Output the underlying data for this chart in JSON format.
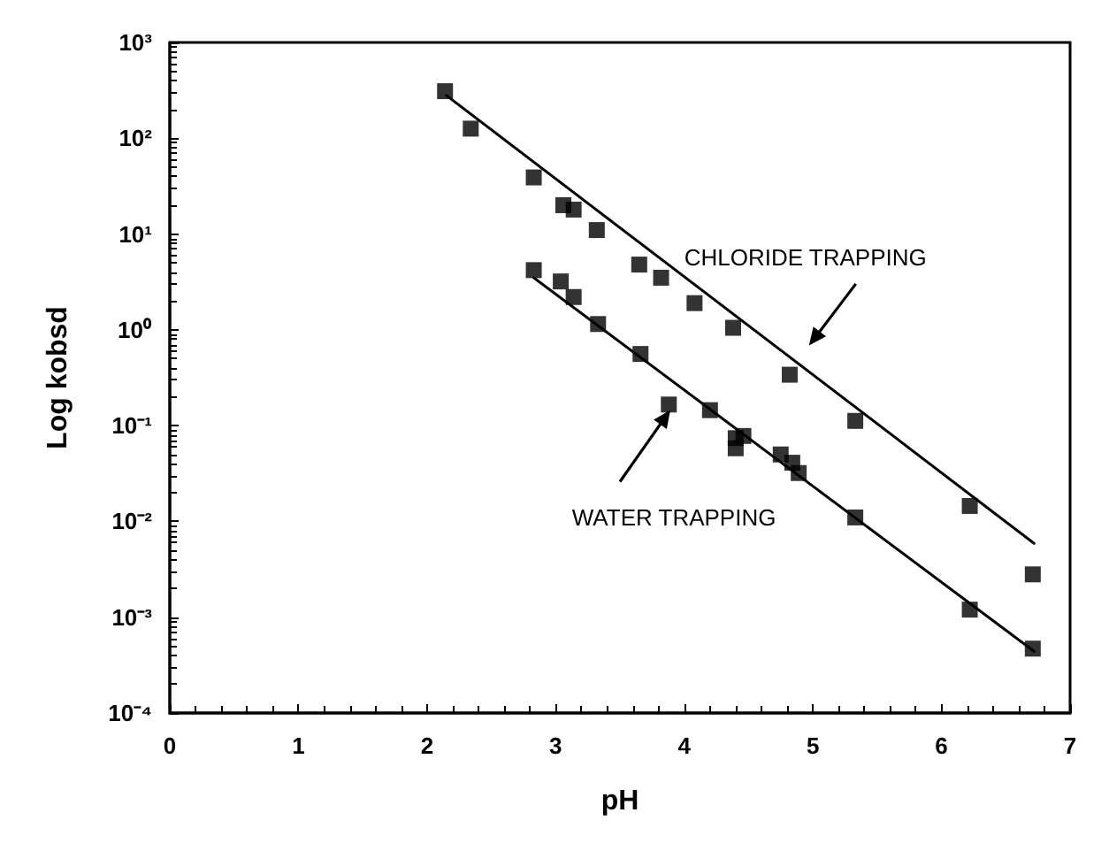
{
  "chart_data": {
    "type": "scatter",
    "xlabel": "pH",
    "ylabel": "Log kobsd",
    "log": "y",
    "marker": "square",
    "xlim": [
      0,
      7
    ],
    "xticks": [
      0,
      1,
      2,
      3,
      4,
      5,
      6,
      7
    ],
    "ylim": [
      0.0001,
      1000
    ],
    "yticks": [
      {
        "value": 0.0001,
        "label": "10⁻⁴"
      },
      {
        "value": 0.001,
        "label": "10⁻³"
      },
      {
        "value": 0.01,
        "label": "10⁻²"
      },
      {
        "value": 0.1,
        "label": "10⁻¹"
      },
      {
        "value": 1,
        "label": "10⁰"
      },
      {
        "value": 10,
        "label": "10¹"
      },
      {
        "value": 100,
        "label": "10²"
      },
      {
        "value": 1000,
        "label": "10³"
      }
    ],
    "series": [
      {
        "color": "#000000",
        "x": [
          2.14,
          2.34,
          2.83,
          3.06,
          3.14,
          3.32,
          3.65,
          3.82,
          4.08,
          4.38,
          4.82,
          5.33,
          6.22,
          6.71
        ],
        "values": [
          310,
          126,
          39,
          20,
          18,
          11,
          4.8,
          3.5,
          1.9,
          1.05,
          0.34,
          0.112,
          0.0145,
          0.0028
        ]
      },
      {
        "color": "#000000",
        "x": [
          2.83,
          3.04,
          3.14,
          3.33,
          3.66,
          3.88,
          4.2,
          4.4,
          4.4,
          4.46,
          4.75,
          4.84,
          4.89,
          5.33,
          6.22,
          6.71
        ],
        "values": [
          4.2,
          3.2,
          2.2,
          1.15,
          0.56,
          0.166,
          0.145,
          0.074,
          0.058,
          0.078,
          0.05,
          0.041,
          0.032,
          0.011,
          0.0012,
          0.00047
        ]
      },
      {
        "type": "line",
        "color": "#000000",
        "marker": "none",
        "line_style": "solid",
        "x": [
          2.15,
          6.72
        ],
        "values": [
          280,
          0.0059
        ]
      },
      {
        "type": "line",
        "color": "#000000",
        "marker": "none",
        "line_style": "solid",
        "x": [
          2.83,
          6.72
        ],
        "values": [
          3.5,
          0.00044
        ]
      }
    ],
    "annotations": [
      "CHLORIDE TRAPPING",
      "WATER TRAPPING"
    ]
  }
}
